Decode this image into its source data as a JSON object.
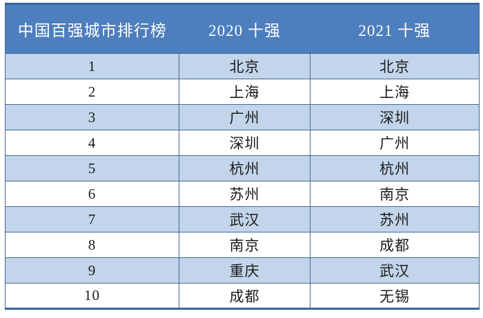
{
  "chart_data": {
    "type": "table",
    "title": "中国百强城市排行榜",
    "columns": [
      "中国百强城市排行榜",
      "2020 十强",
      "2021 十强"
    ],
    "rows": [
      [
        "1",
        "北京",
        "北京"
      ],
      [
        "2",
        "上海",
        "上海"
      ],
      [
        "3",
        "广州",
        "深圳"
      ],
      [
        "4",
        "深圳",
        "广州"
      ],
      [
        "5",
        "杭州",
        "杭州"
      ],
      [
        "6",
        "苏州",
        "南京"
      ],
      [
        "7",
        "武汉",
        "苏州"
      ],
      [
        "8",
        "南京",
        "成都"
      ],
      [
        "9",
        "重庆",
        "武汉"
      ],
      [
        "10",
        "成都",
        "无锡"
      ]
    ]
  },
  "header": {
    "ranking_title": "中国百强城市排行榜",
    "col_2020": "2020 十强",
    "col_2021": "2021 十强"
  },
  "rows": [
    {
      "rank": "1",
      "city_2020": "北京",
      "city_2021": "北京"
    },
    {
      "rank": "2",
      "city_2020": "上海",
      "city_2021": "上海"
    },
    {
      "rank": "3",
      "city_2020": "广州",
      "city_2021": "深圳"
    },
    {
      "rank": "4",
      "city_2020": "深圳",
      "city_2021": "广州"
    },
    {
      "rank": "5",
      "city_2020": "杭州",
      "city_2021": "杭州"
    },
    {
      "rank": "6",
      "city_2020": "苏州",
      "city_2021": "南京"
    },
    {
      "rank": "7",
      "city_2020": "武汉",
      "city_2021": "苏州"
    },
    {
      "rank": "8",
      "city_2020": "南京",
      "city_2021": "成都"
    },
    {
      "rank": "9",
      "city_2020": "重庆",
      "city_2021": "武汉"
    },
    {
      "rank": "10",
      "city_2020": "成都",
      "city_2021": "无锡"
    }
  ],
  "colors": {
    "header_bg": "#4d7ebd",
    "row_alt_bg": "#c2d5ea",
    "row_bg": "#ffffff",
    "border": "#44688f",
    "outer_border": "#35659c",
    "header_text": "#ffffff",
    "body_text": "#1c1c1c"
  }
}
